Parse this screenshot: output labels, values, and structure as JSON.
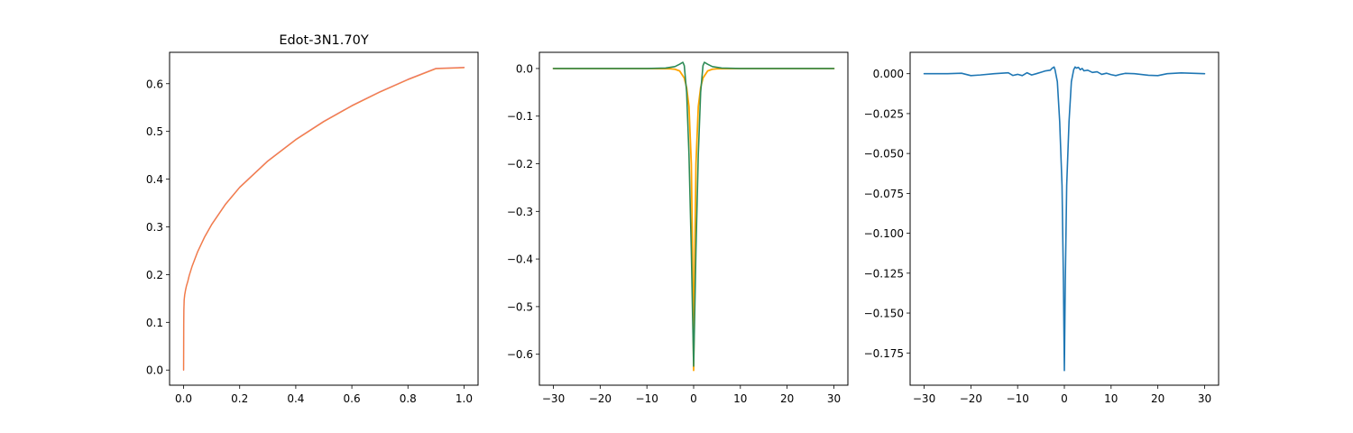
{
  "chart_data": [
    {
      "type": "line",
      "title": "Edot-3N1.70Y",
      "xlim": [
        -0.05,
        1.05
      ],
      "ylim": [
        -0.0317,
        0.6657
      ],
      "xticks": [
        0.0,
        0.2,
        0.4,
        0.6,
        0.8,
        1.0
      ],
      "xtick_labels": [
        "0.0",
        "0.2",
        "0.4",
        "0.6",
        "0.8",
        "1.0"
      ],
      "yticks": [
        0.0,
        0.1,
        0.2,
        0.3,
        0.4,
        0.5,
        0.6
      ],
      "ytick_labels": [
        "0.0",
        "0.1",
        "0.2",
        "0.3",
        "0.4",
        "0.5",
        "0.6"
      ],
      "grid": false,
      "series": [
        {
          "color": "#d62728",
          "opacity": 0.6,
          "linewidth": 1.5,
          "x": [
            0.0,
            0.0005,
            0.001,
            0.002,
            0.004,
            0.007,
            0.01,
            0.015,
            0.02,
            0.03,
            0.05,
            0.075,
            0.1,
            0.15,
            0.2,
            0.3,
            0.4,
            0.5,
            0.6,
            0.7,
            0.8,
            0.9,
            1.0
          ],
          "y": [
            0.0,
            0.095,
            0.126,
            0.147,
            0.158,
            0.168,
            0.176,
            0.186,
            0.198,
            0.217,
            0.248,
            0.279,
            0.305,
            0.348,
            0.383,
            0.438,
            0.483,
            0.521,
            0.554,
            0.583,
            0.609,
            0.632,
            0.634
          ]
        },
        {
          "color": "#ff7f0e",
          "opacity": 0.6,
          "linewidth": 1.0,
          "x": [
            0.0,
            0.0005,
            0.001,
            0.002,
            0.004,
            0.007,
            0.01,
            0.015,
            0.02,
            0.03,
            0.05,
            0.075,
            0.1,
            0.15,
            0.2,
            0.3,
            0.4,
            0.5,
            0.6,
            0.7,
            0.8,
            0.9,
            1.0
          ],
          "y": [
            0.0,
            0.093,
            0.124,
            0.145,
            0.157,
            0.167,
            0.175,
            0.185,
            0.197,
            0.216,
            0.247,
            0.278,
            0.304,
            0.347,
            0.382,
            0.437,
            0.482,
            0.52,
            0.553,
            0.582,
            0.608,
            0.631,
            0.633
          ]
        }
      ]
    },
    {
      "type": "line",
      "title": "",
      "xlim": [
        -33,
        33
      ],
      "ylim": [
        -0.665,
        0.034
      ],
      "xticks": [
        -30,
        -20,
        -10,
        0,
        10,
        20,
        30
      ],
      "xtick_labels": [
        "−30",
        "−20",
        "−10",
        "0",
        "10",
        "20",
        "30"
      ],
      "yticks": [
        0.0,
        -0.1,
        -0.2,
        -0.3,
        -0.4,
        -0.5,
        -0.6
      ],
      "ytick_labels": [
        "0.0",
        "−0.1",
        "−0.2",
        "−0.3",
        "−0.4",
        "−0.5",
        "−0.6"
      ],
      "grid": false,
      "series": [
        {
          "color": "#ffa500",
          "opacity": 1,
          "linewidth": 1.8,
          "x": [
            -30,
            -20,
            -10,
            -5,
            -4,
            -3,
            -2,
            -1.5,
            -1,
            -0.5,
            -0.25,
            0,
            0.25,
            0.5,
            1,
            1.5,
            2,
            3,
            4,
            5,
            10,
            20,
            30
          ],
          "y": [
            0,
            0,
            0,
            -0.0005,
            -0.0015,
            -0.005,
            -0.02,
            -0.04,
            -0.08,
            -0.2,
            -0.38,
            -0.634,
            -0.38,
            -0.2,
            -0.08,
            -0.04,
            -0.02,
            -0.005,
            -0.0015,
            -0.0005,
            0,
            0,
            0
          ]
        },
        {
          "color": "#2e8b57",
          "opacity": 1,
          "linewidth": 1.6,
          "x": [
            -30,
            -20,
            -10,
            -6,
            -4,
            -3,
            -2.3,
            -2,
            -1.5,
            -1,
            -0.5,
            -0.2,
            0,
            0.2,
            0.5,
            1,
            1.5,
            2,
            2.3,
            3,
            4,
            6,
            10,
            20,
            30
          ],
          "y": [
            0,
            0,
            0,
            0.001,
            0.004,
            0.009,
            0.013,
            0.006,
            -0.05,
            -0.18,
            -0.38,
            -0.53,
            -0.625,
            -0.53,
            -0.38,
            -0.18,
            -0.05,
            0.006,
            0.013,
            0.009,
            0.004,
            0.001,
            0,
            0,
            0
          ]
        }
      ]
    },
    {
      "type": "line",
      "title": "",
      "xlim": [
        -33,
        33
      ],
      "ylim": [
        -0.1952,
        0.0134
      ],
      "xticks": [
        -30,
        -20,
        -10,
        0,
        10,
        20,
        30
      ],
      "xtick_labels": [
        "−30",
        "−20",
        "−10",
        "0",
        "10",
        "20",
        "30"
      ],
      "yticks": [
        0.0,
        -0.025,
        -0.05,
        -0.075,
        -0.1,
        -0.125,
        -0.15,
        -0.175
      ],
      "ytick_labels": [
        "0.000",
        "−0.025",
        "−0.050",
        "−0.075",
        "−0.100",
        "−0.125",
        "−0.150",
        "−0.175"
      ],
      "grid": false,
      "series": [
        {
          "color": "#1f77b4",
          "opacity": 1,
          "linewidth": 1.6,
          "x": [
            -30,
            -25,
            -22,
            -20,
            -18,
            -15,
            -12,
            -11,
            -10,
            -9,
            -8,
            -7,
            -6,
            -5,
            -4,
            -3,
            -2.6,
            -2.2,
            -2,
            -1.5,
            -1,
            -0.5,
            -0.2,
            0,
            0.2,
            0.5,
            1,
            1.5,
            2,
            2.3,
            2.6,
            3,
            3.4,
            3.8,
            4.2,
            5,
            6,
            7,
            8,
            9,
            10,
            11,
            12,
            13,
            15,
            18,
            20,
            22,
            25,
            30
          ],
          "y": [
            0,
            0,
            0.0003,
            -0.0012,
            -0.0008,
            0,
            0.0006,
            -0.0011,
            -0.0004,
            -0.0012,
            0.0006,
            -0.0008,
            0,
            0.0009,
            0.0018,
            0.0022,
            0.0035,
            0.0042,
            0.0025,
            -0.005,
            -0.03,
            -0.07,
            -0.13,
            -0.186,
            -0.13,
            -0.07,
            -0.03,
            -0.005,
            0.0025,
            0.0042,
            0.0035,
            0.004,
            0.0025,
            0.0033,
            0.0018,
            0.0022,
            0.0008,
            0.0012,
            -0.0004,
            0.0003,
            -0.0006,
            -0.0012,
            -0.0004,
            0.0002,
            0,
            -0.001,
            -0.0012,
            0,
            0.0005,
            0
          ]
        }
      ]
    }
  ]
}
